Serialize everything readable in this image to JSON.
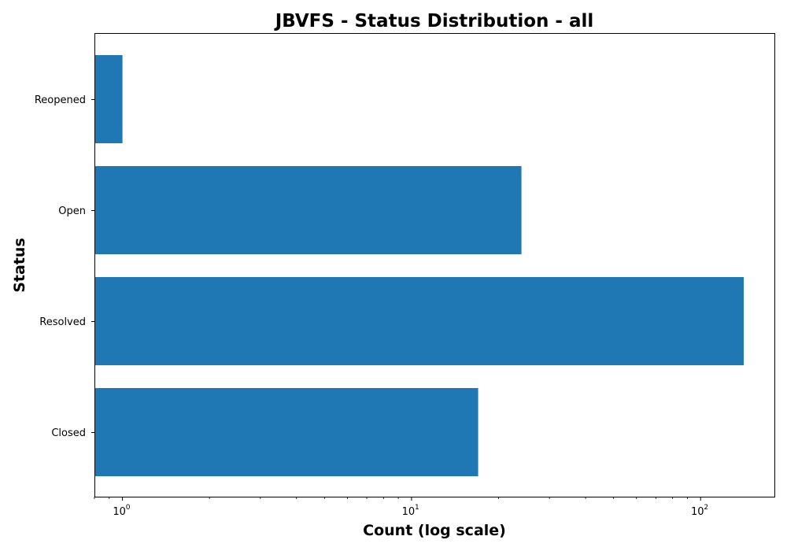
{
  "chart_data": {
    "type": "bar",
    "orientation": "horizontal",
    "title": "JBVFS - Status Distribution - all",
    "xlabel": "Count (log scale)",
    "ylabel": "Status",
    "x_scale": "log",
    "xlim": [
      0.8,
      180
    ],
    "x_tick_labels": [
      {
        "value": 1,
        "base": "10",
        "exp": "0"
      },
      {
        "value": 10,
        "base": "10",
        "exp": "1"
      },
      {
        "value": 100,
        "base": "10",
        "exp": "2"
      }
    ],
    "categories": [
      "Reopened",
      "Open",
      "Resolved",
      "Closed"
    ],
    "values": [
      1,
      24,
      141,
      17
    ],
    "bar_color": "#1f77b4",
    "grid": false,
    "legend": "none"
  }
}
